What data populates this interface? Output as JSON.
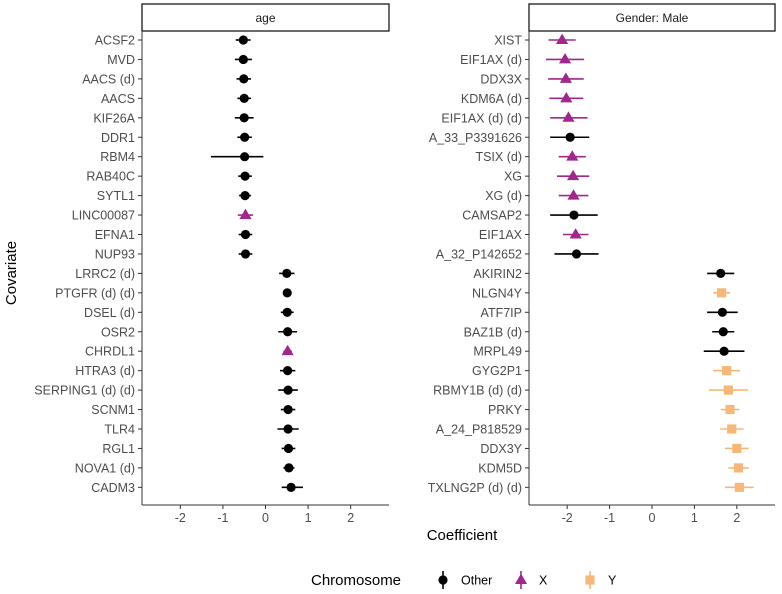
{
  "chart_data": {
    "type": "forest",
    "xlabel": "Coefficient",
    "ylabel": "Covariate",
    "xlim": [
      -2.9,
      2.9
    ],
    "xticks": [
      -2,
      -1,
      0,
      1,
      2
    ],
    "grid": false,
    "legend": {
      "title": "Chromosome",
      "position": "bottom",
      "entries": [
        {
          "label": "Other",
          "shape": "circle",
          "color": "#000000"
        },
        {
          "label": "X",
          "shape": "triangle",
          "color": "#a0288c"
        },
        {
          "label": "Y",
          "shape": "square",
          "color": "#f5b87a"
        }
      ]
    },
    "panels": [
      {
        "title": "age",
        "rows": [
          {
            "label": "ACSF2",
            "est": -0.52,
            "lo": -0.7,
            "hi": -0.35,
            "chrom": "Other"
          },
          {
            "label": "MVD",
            "est": -0.52,
            "lo": -0.72,
            "hi": -0.32,
            "chrom": "Other"
          },
          {
            "label": "AACS (d)",
            "est": -0.51,
            "lo": -0.68,
            "hi": -0.34,
            "chrom": "Other"
          },
          {
            "label": "AACS",
            "est": -0.5,
            "lo": -0.66,
            "hi": -0.34,
            "chrom": "Other"
          },
          {
            "label": "KIF26A",
            "est": -0.5,
            "lo": -0.72,
            "hi": -0.28,
            "chrom": "Other"
          },
          {
            "label": "DDR1",
            "est": -0.49,
            "lo": -0.66,
            "hi": -0.32,
            "chrom": "Other"
          },
          {
            "label": "RBM4",
            "est": -0.49,
            "lo": -1.28,
            "hi": -0.05,
            "chrom": "Other"
          },
          {
            "label": "RAB40C",
            "est": -0.48,
            "lo": -0.64,
            "hi": -0.32,
            "chrom": "Other"
          },
          {
            "label": "SYTL1",
            "est": -0.48,
            "lo": -0.62,
            "hi": -0.34,
            "chrom": "Other"
          },
          {
            "label": "LINC00087",
            "est": -0.47,
            "lo": -0.65,
            "hi": -0.29,
            "chrom": "X"
          },
          {
            "label": "EFNA1",
            "est": -0.47,
            "lo": -0.63,
            "hi": -0.31,
            "chrom": "Other"
          },
          {
            "label": "NUP93",
            "est": -0.47,
            "lo": -0.63,
            "hi": -0.31,
            "chrom": "Other"
          },
          {
            "label": "LRRC2 (d)",
            "est": 0.5,
            "lo": 0.32,
            "hi": 0.68,
            "chrom": "Other"
          },
          {
            "label": "PTGFR (d) (d)",
            "est": 0.51,
            "lo": 0.42,
            "hi": 0.6,
            "chrom": "Other"
          },
          {
            "label": "DSEL (d)",
            "est": 0.51,
            "lo": 0.36,
            "hi": 0.66,
            "chrom": "Other"
          },
          {
            "label": "OSR2",
            "est": 0.52,
            "lo": 0.3,
            "hi": 0.74,
            "chrom": "Other"
          },
          {
            "label": "CHRDL1",
            "est": 0.52,
            "lo": 0.42,
            "hi": 0.62,
            "chrom": "X"
          },
          {
            "label": "HTRA3 (d)",
            "est": 0.52,
            "lo": 0.34,
            "hi": 0.7,
            "chrom": "Other"
          },
          {
            "label": "SERPING1 (d) (d)",
            "est": 0.53,
            "lo": 0.3,
            "hi": 0.76,
            "chrom": "Other"
          },
          {
            "label": "SCNM1",
            "est": 0.53,
            "lo": 0.36,
            "hi": 0.7,
            "chrom": "Other"
          },
          {
            "label": "TLR4",
            "est": 0.53,
            "lo": 0.28,
            "hi": 0.78,
            "chrom": "Other"
          },
          {
            "label": "RGL1",
            "est": 0.54,
            "lo": 0.38,
            "hi": 0.7,
            "chrom": "Other"
          },
          {
            "label": "NOVA1 (d)",
            "est": 0.55,
            "lo": 0.42,
            "hi": 0.68,
            "chrom": "Other"
          },
          {
            "label": "CADM3",
            "est": 0.6,
            "lo": 0.38,
            "hi": 0.88,
            "chrom": "Other"
          }
        ]
      },
      {
        "title": "Gender: Male",
        "rows": [
          {
            "label": "XIST",
            "est": -2.12,
            "lo": -2.44,
            "hi": -1.8,
            "chrom": "X"
          },
          {
            "label": "EIF1AX (d)",
            "est": -2.05,
            "lo": -2.5,
            "hi": -1.6,
            "chrom": "X"
          },
          {
            "label": "DDX3X",
            "est": -2.03,
            "lo": -2.45,
            "hi": -1.61,
            "chrom": "X"
          },
          {
            "label": "KDM6A (d)",
            "est": -2.02,
            "lo": -2.42,
            "hi": -1.62,
            "chrom": "X"
          },
          {
            "label": "EIF1AX (d) (d)",
            "est": -1.97,
            "lo": -2.4,
            "hi": -1.52,
            "chrom": "X"
          },
          {
            "label": "A_33_P3391626",
            "est": -1.93,
            "lo": -2.4,
            "hi": -1.48,
            "chrom": "Other"
          },
          {
            "label": "TSIX (d)",
            "est": -1.88,
            "lo": -2.2,
            "hi": -1.56,
            "chrom": "X"
          },
          {
            "label": "XG",
            "est": -1.86,
            "lo": -2.24,
            "hi": -1.48,
            "chrom": "X"
          },
          {
            "label": "XG (d)",
            "est": -1.85,
            "lo": -2.2,
            "hi": -1.5,
            "chrom": "X"
          },
          {
            "label": "CAMSAP2",
            "est": -1.84,
            "lo": -2.4,
            "hi": -1.28,
            "chrom": "Other"
          },
          {
            "label": "EIF1AX",
            "est": -1.8,
            "lo": -2.1,
            "hi": -1.5,
            "chrom": "X"
          },
          {
            "label": "A_32_P142652",
            "est": -1.78,
            "lo": -2.3,
            "hi": -1.26,
            "chrom": "Other"
          },
          {
            "label": "AKIRIN2",
            "est": 1.62,
            "lo": 1.3,
            "hi": 1.94,
            "chrom": "Other"
          },
          {
            "label": "NLGN4Y",
            "est": 1.64,
            "lo": 1.44,
            "hi": 1.84,
            "chrom": "Y"
          },
          {
            "label": "ATF7IP",
            "est": 1.66,
            "lo": 1.3,
            "hi": 2.02,
            "chrom": "Other"
          },
          {
            "label": "BAZ1B (d)",
            "est": 1.68,
            "lo": 1.42,
            "hi": 1.94,
            "chrom": "Other"
          },
          {
            "label": "MRPL49",
            "est": 1.7,
            "lo": 1.22,
            "hi": 2.18,
            "chrom": "Other"
          },
          {
            "label": "GYG2P1",
            "est": 1.76,
            "lo": 1.44,
            "hi": 2.08,
            "chrom": "Y"
          },
          {
            "label": "RBMY1B (d) (d)",
            "est": 1.8,
            "lo": 1.34,
            "hi": 2.26,
            "chrom": "Y"
          },
          {
            "label": "PRKY",
            "est": 1.84,
            "lo": 1.62,
            "hi": 2.06,
            "chrom": "Y"
          },
          {
            "label": "A_24_P818529",
            "est": 1.88,
            "lo": 1.6,
            "hi": 2.16,
            "chrom": "Y"
          },
          {
            "label": "DDX3Y",
            "est": 2.0,
            "lo": 1.72,
            "hi": 2.28,
            "chrom": "Y"
          },
          {
            "label": "KDM5D",
            "est": 2.04,
            "lo": 1.8,
            "hi": 2.28,
            "chrom": "Y"
          },
          {
            "label": "TXLNG2P (d) (d)",
            "est": 2.06,
            "lo": 1.72,
            "hi": 2.4,
            "chrom": "Y"
          }
        ]
      }
    ]
  }
}
